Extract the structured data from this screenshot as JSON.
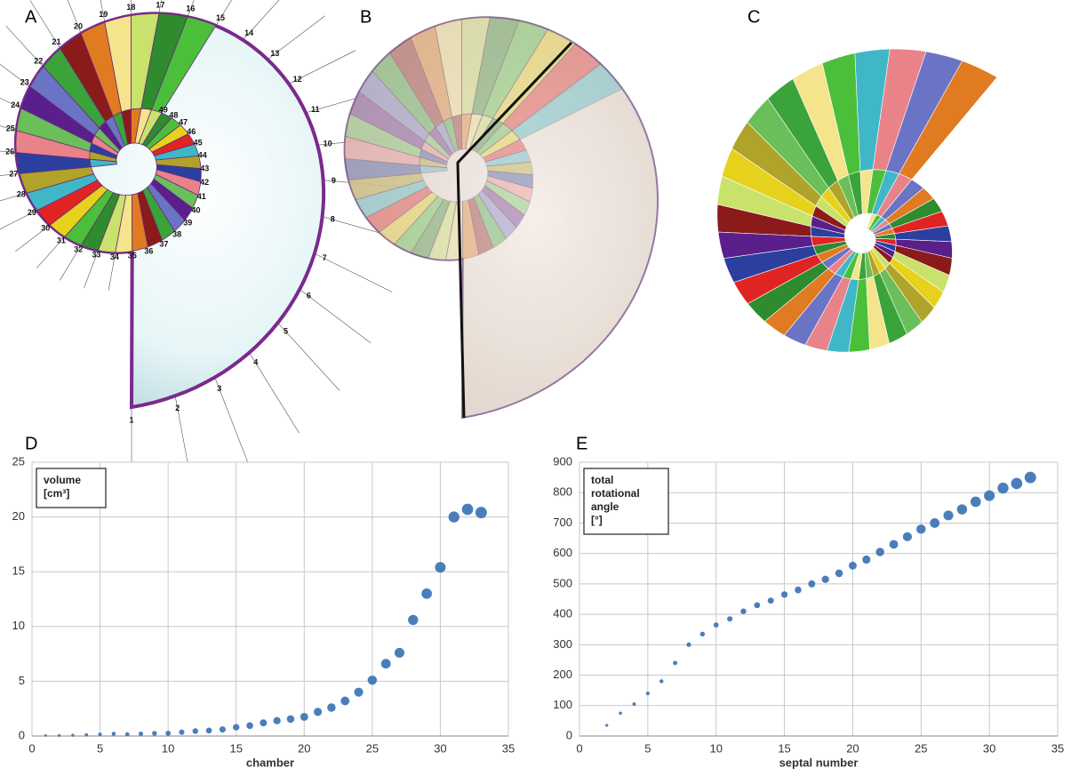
{
  "images": [
    {
      "label": "A",
      "numbers": [
        "1",
        "2",
        "3",
        "4",
        "5",
        "6",
        "7",
        "8",
        "9",
        "10",
        "11",
        "12",
        "13",
        "14",
        "15",
        "16",
        "17",
        "18",
        "19",
        "20",
        "21",
        "22",
        "23",
        "24",
        "25",
        "26",
        "27",
        "28",
        "29",
        "30",
        "31",
        "32",
        "33",
        "34",
        "35",
        "36",
        "37",
        "38",
        "39",
        "40",
        "41",
        "42",
        "43",
        "44",
        "45",
        "46",
        "47",
        "48",
        "49"
      ]
    },
    {
      "label": "B"
    },
    {
      "label": "C"
    }
  ],
  "chart_data": [
    {
      "type": "scatter",
      "label": "D",
      "annotation": [
        "volume",
        "[cm³]"
      ],
      "xlabel": "chamber",
      "x": [
        1,
        2,
        3,
        4,
        5,
        6,
        7,
        8,
        9,
        10,
        11,
        12,
        13,
        14,
        15,
        16,
        17,
        18,
        19,
        20,
        21,
        22,
        23,
        24,
        25,
        26,
        27,
        28,
        29,
        30,
        31,
        32,
        33
      ],
      "values": [
        0.05,
        0.05,
        0.07,
        0.1,
        0.15,
        0.2,
        0.15,
        0.2,
        0.25,
        0.25,
        0.35,
        0.45,
        0.5,
        0.6,
        0.8,
        0.95,
        1.2,
        1.4,
        1.55,
        1.75,
        2.2,
        2.6,
        3.2,
        4.0,
        5.1,
        6.6,
        7.6,
        10.6,
        13.0,
        15.4,
        20.0,
        20.7,
        20.4
      ],
      "color": "#4a7ebb",
      "xlim": [
        0,
        35
      ],
      "ylim": [
        0,
        25
      ],
      "xticks": [
        0,
        5,
        10,
        15,
        20,
        25,
        30,
        35
      ],
      "yticks": [
        0,
        5,
        10,
        15,
        20,
        25
      ],
      "grid": true
    },
    {
      "type": "scatter",
      "label": "E",
      "annotation": [
        "total",
        "rotational",
        "angle",
        "[°]"
      ],
      "xlabel": "septal number",
      "x": [
        2,
        3,
        4,
        5,
        6,
        7,
        8,
        9,
        10,
        11,
        12,
        13,
        14,
        15,
        16,
        17,
        18,
        19,
        20,
        21,
        22,
        23,
        24,
        25,
        26,
        27,
        28,
        29,
        30,
        31,
        32,
        33
      ],
      "values": [
        35,
        75,
        105,
        140,
        180,
        240,
        300,
        335,
        365,
        385,
        410,
        430,
        445,
        465,
        480,
        500,
        515,
        535,
        560,
        580,
        605,
        630,
        655,
        680,
        700,
        725,
        745,
        770,
        790,
        815,
        830,
        850
      ],
      "color": "#4a7ebb",
      "xlim": [
        0,
        35
      ],
      "ylim": [
        0,
        900
      ],
      "xticks": [
        0,
        5,
        10,
        15,
        20,
        25,
        30,
        35
      ],
      "yticks": [
        0,
        100,
        200,
        300,
        400,
        500,
        600,
        700,
        800,
        900
      ],
      "grid": true
    }
  ]
}
